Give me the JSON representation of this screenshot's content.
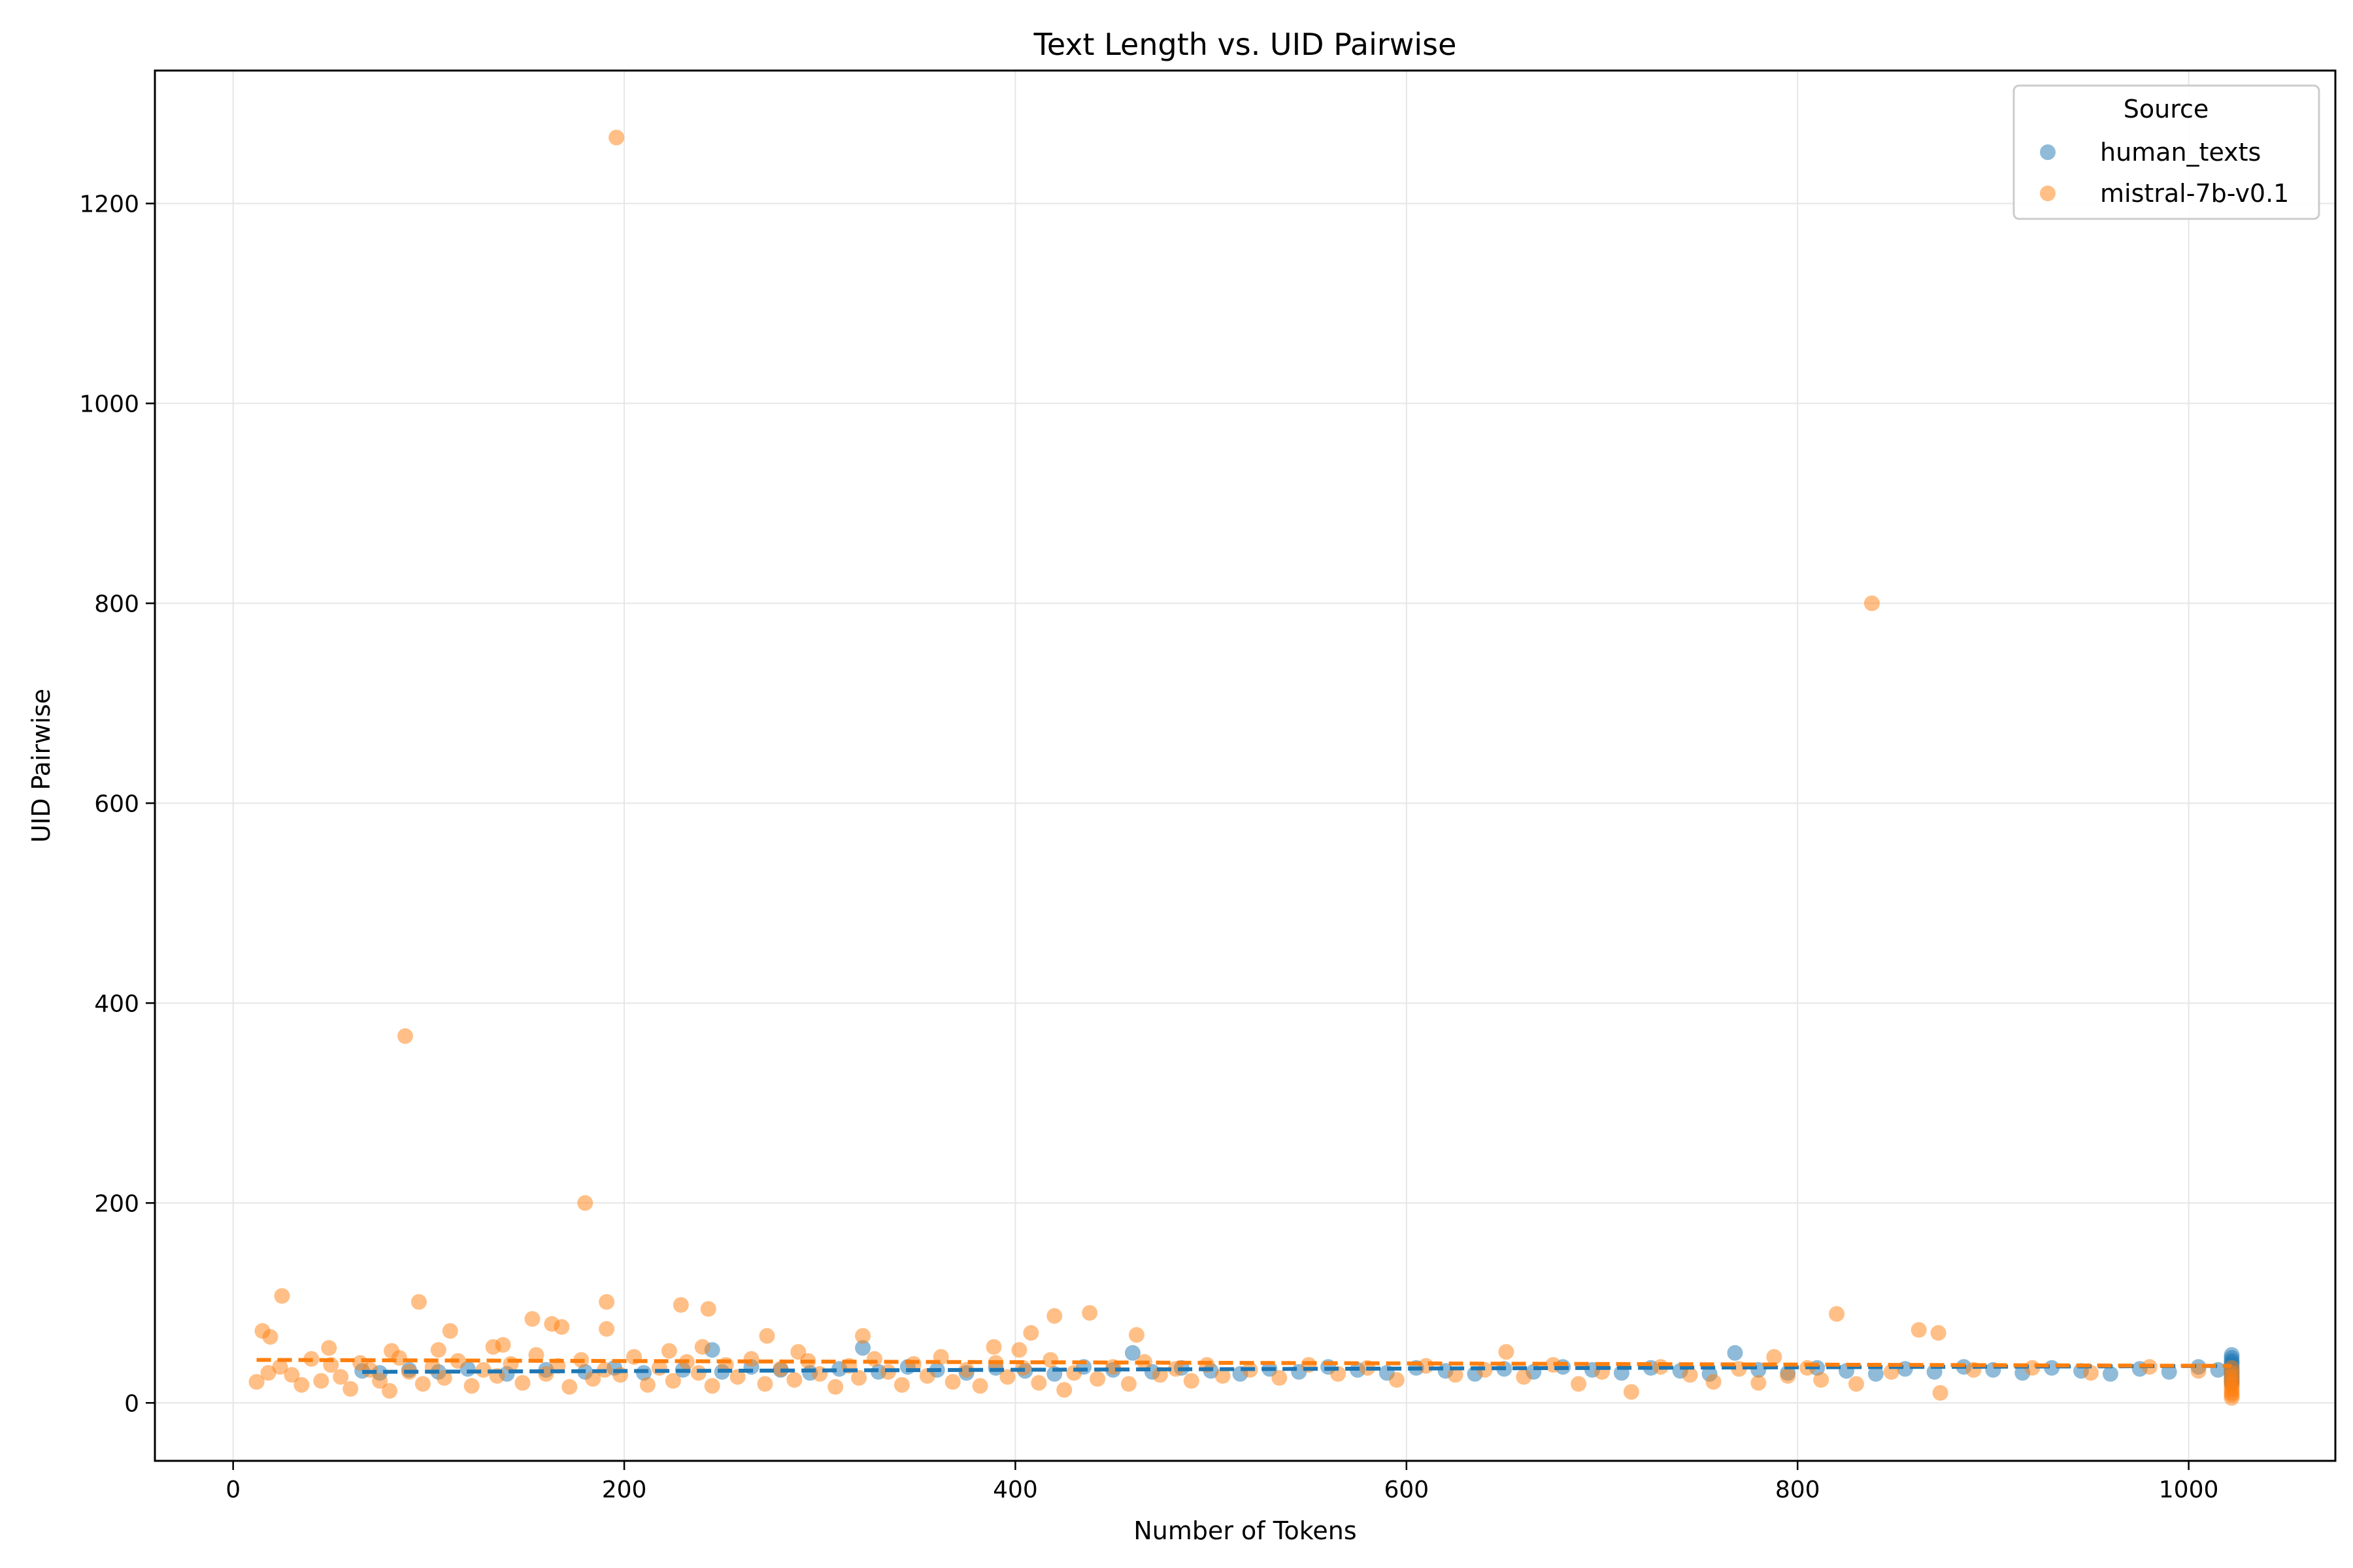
{
  "colors": {
    "human": "#1f77b4",
    "mistral": "#ff7f0e",
    "grid": "#e6e6e6",
    "axis": "#000000"
  },
  "chart_data": {
    "type": "scatter",
    "title": "Text Length vs. UID Pairwise",
    "xlabel": "Number of Tokens",
    "ylabel": "UID Pairwise",
    "xlim": [
      -40,
      1075
    ],
    "ylim": [
      -58,
      1333
    ],
    "xticks": [
      0,
      200,
      400,
      600,
      800,
      1000
    ],
    "yticks": [
      0,
      200,
      400,
      600,
      800,
      1000,
      1200
    ],
    "grid": true,
    "legend": {
      "title": "Source",
      "placement": "top-right",
      "entries": [
        "human_texts",
        "mistral-7b-v0.1"
      ]
    },
    "series": [
      {
        "name": "human_texts",
        "color": "#1f77b4",
        "trend_line": {
          "x": [
            66,
            1022
          ],
          "y": [
            31,
            37
          ]
        },
        "points": [
          [
            66,
            32
          ],
          [
            75,
            30
          ],
          [
            90,
            33
          ],
          [
            105,
            31
          ],
          [
            120,
            34
          ],
          [
            140,
            29
          ],
          [
            160,
            33
          ],
          [
            180,
            31
          ],
          [
            195,
            35
          ],
          [
            210,
            30
          ],
          [
            230,
            33
          ],
          [
            245,
            53
          ],
          [
            250,
            31
          ],
          [
            265,
            36
          ],
          [
            280,
            33
          ],
          [
            295,
            30
          ],
          [
            310,
            34
          ],
          [
            322,
            55
          ],
          [
            330,
            31
          ],
          [
            345,
            36
          ],
          [
            360,
            33
          ],
          [
            375,
            30
          ],
          [
            390,
            35
          ],
          [
            405,
            32
          ],
          [
            420,
            29
          ],
          [
            435,
            36
          ],
          [
            450,
            33
          ],
          [
            460,
            50
          ],
          [
            470,
            31
          ],
          [
            485,
            35
          ],
          [
            500,
            32
          ],
          [
            515,
            29
          ],
          [
            530,
            34
          ],
          [
            545,
            31
          ],
          [
            560,
            36
          ],
          [
            575,
            33
          ],
          [
            590,
            30
          ],
          [
            605,
            35
          ],
          [
            620,
            32
          ],
          [
            635,
            29
          ],
          [
            650,
            34
          ],
          [
            665,
            31
          ],
          [
            680,
            36
          ],
          [
            695,
            33
          ],
          [
            710,
            30
          ],
          [
            725,
            35
          ],
          [
            740,
            32
          ],
          [
            755,
            29
          ],
          [
            768,
            50
          ],
          [
            780,
            33
          ],
          [
            795,
            30
          ],
          [
            810,
            35
          ],
          [
            825,
            32
          ],
          [
            840,
            29
          ],
          [
            855,
            34
          ],
          [
            870,
            31
          ],
          [
            885,
            36
          ],
          [
            900,
            33
          ],
          [
            915,
            30
          ],
          [
            930,
            35
          ],
          [
            945,
            32
          ],
          [
            960,
            29
          ],
          [
            975,
            34
          ],
          [
            990,
            31
          ],
          [
            1005,
            36
          ],
          [
            1015,
            33
          ],
          [
            1022,
            48
          ],
          [
            1022,
            45
          ],
          [
            1022,
            42
          ],
          [
            1022,
            40
          ],
          [
            1022,
            38
          ],
          [
            1022,
            35
          ],
          [
            1022,
            33
          ],
          [
            1022,
            31
          ],
          [
            1022,
            29
          ],
          [
            1022,
            27
          ],
          [
            1022,
            25
          ],
          [
            1022,
            23
          ],
          [
            1022,
            21
          ],
          [
            1022,
            19
          ]
        ]
      },
      {
        "name": "mistral-7b-v0.1",
        "color": "#ff7f0e",
        "trend_line": {
          "x": [
            12,
            1022
          ],
          "y": [
            43,
            37
          ]
        },
        "points": [
          [
            196,
            1266
          ],
          [
            838,
            800
          ],
          [
            88,
            367
          ],
          [
            180,
            200
          ],
          [
            25,
            107
          ],
          [
            95,
            101
          ],
          [
            191,
            101
          ],
          [
            229,
            98
          ],
          [
            243,
            94
          ],
          [
            438,
            90
          ],
          [
            820,
            89
          ],
          [
            420,
            87
          ],
          [
            153,
            84
          ],
          [
            163,
            79
          ],
          [
            168,
            76
          ],
          [
            191,
            74
          ],
          [
            15,
            72
          ],
          [
            111,
            72
          ],
          [
            862,
            73
          ],
          [
            872,
            70
          ],
          [
            408,
            70
          ],
          [
            462,
            68
          ],
          [
            322,
            67
          ],
          [
            273,
            67
          ],
          [
            19,
            66
          ],
          [
            138,
            58
          ],
          [
            133,
            56
          ],
          [
            49,
            55
          ],
          [
            105,
            53
          ],
          [
            81,
            52
          ],
          [
            223,
            52
          ],
          [
            240,
            56
          ],
          [
            289,
            51
          ],
          [
            389,
            56
          ],
          [
            402,
            53
          ],
          [
            651,
            51
          ],
          [
            12,
            21
          ],
          [
            18,
            30
          ],
          [
            24,
            36
          ],
          [
            30,
            28
          ],
          [
            35,
            18
          ],
          [
            40,
            44
          ],
          [
            45,
            22
          ],
          [
            50,
            38
          ],
          [
            55,
            26
          ],
          [
            60,
            14
          ],
          [
            65,
            40
          ],
          [
            70,
            33
          ],
          [
            75,
            22
          ],
          [
            80,
            12
          ],
          [
            85,
            45
          ],
          [
            90,
            31
          ],
          [
            97,
            19
          ],
          [
            102,
            36
          ],
          [
            108,
            25
          ],
          [
            115,
            42
          ],
          [
            122,
            17
          ],
          [
            128,
            33
          ],
          [
            135,
            27
          ],
          [
            142,
            39
          ],
          [
            148,
            20
          ],
          [
            155,
            48
          ],
          [
            160,
            29
          ],
          [
            166,
            37
          ],
          [
            172,
            16
          ],
          [
            178,
            43
          ],
          [
            184,
            24
          ],
          [
            190,
            33
          ],
          [
            198,
            28
          ],
          [
            205,
            46
          ],
          [
            212,
            18
          ],
          [
            218,
            35
          ],
          [
            225,
            22
          ],
          [
            232,
            41
          ],
          [
            238,
            30
          ],
          [
            245,
            17
          ],
          [
            252,
            38
          ],
          [
            258,
            26
          ],
          [
            265,
            44
          ],
          [
            272,
            19
          ],
          [
            280,
            34
          ],
          [
            287,
            23
          ],
          [
            294,
            42
          ],
          [
            300,
            29
          ],
          [
            308,
            16
          ],
          [
            315,
            37
          ],
          [
            320,
            25
          ],
          [
            328,
            44
          ],
          [
            335,
            31
          ],
          [
            342,
            18
          ],
          [
            348,
            39
          ],
          [
            355,
            27
          ],
          [
            362,
            46
          ],
          [
            368,
            21
          ],
          [
            375,
            33
          ],
          [
            382,
            17
          ],
          [
            390,
            40
          ],
          [
            396,
            26
          ],
          [
            404,
            35
          ],
          [
            412,
            20
          ],
          [
            418,
            43
          ],
          [
            425,
            13
          ],
          [
            430,
            30
          ],
          [
            442,
            24
          ],
          [
            450,
            36
          ],
          [
            458,
            19
          ],
          [
            466,
            41
          ],
          [
            474,
            28
          ],
          [
            482,
            34
          ],
          [
            490,
            22
          ],
          [
            498,
            38
          ],
          [
            506,
            27
          ],
          [
            520,
            33
          ],
          [
            535,
            25
          ],
          [
            550,
            38
          ],
          [
            565,
            29
          ],
          [
            580,
            35
          ],
          [
            595,
            23
          ],
          [
            610,
            37
          ],
          [
            625,
            28
          ],
          [
            640,
            33
          ],
          [
            660,
            26
          ],
          [
            675,
            38
          ],
          [
            688,
            19
          ],
          [
            700,
            31
          ],
          [
            715,
            11
          ],
          [
            730,
            36
          ],
          [
            745,
            28
          ],
          [
            757,
            21
          ],
          [
            770,
            34
          ],
          [
            780,
            20
          ],
          [
            788,
            46
          ],
          [
            795,
            27
          ],
          [
            805,
            35
          ],
          [
            812,
            23
          ],
          [
            830,
            19
          ],
          [
            848,
            31
          ],
          [
            873,
            10
          ],
          [
            890,
            33
          ],
          [
            920,
            35
          ],
          [
            950,
            30
          ],
          [
            980,
            36
          ],
          [
            1005,
            32
          ],
          [
            1022,
            5
          ],
          [
            1022,
            8
          ],
          [
            1022,
            10
          ],
          [
            1022,
            13
          ],
          [
            1022,
            16
          ],
          [
            1022,
            19
          ],
          [
            1022,
            22
          ],
          [
            1022,
            26
          ],
          [
            1022,
            30
          ],
          [
            1022,
            35
          ]
        ]
      }
    ]
  }
}
